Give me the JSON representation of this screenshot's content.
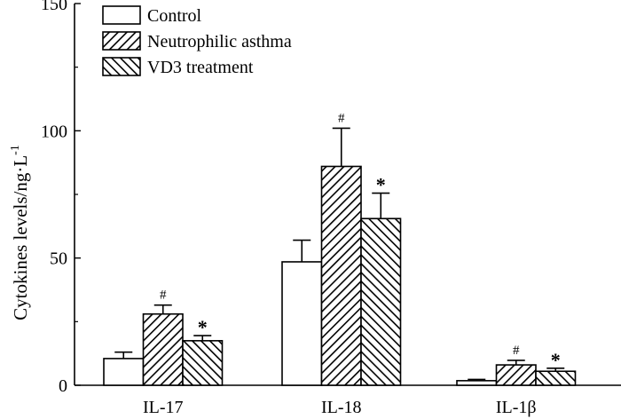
{
  "chart_data": {
    "type": "bar",
    "title": "",
    "xlabel": "",
    "ylabel": "Cytokines levels/ng·L",
    "ylabel_superscript": "-1",
    "ylim": [
      0,
      150
    ],
    "yticks": [
      0,
      50,
      100,
      150
    ],
    "categories": [
      "IL-17",
      "IL-18",
      "IL-1β"
    ],
    "series": [
      {
        "name": "Control",
        "pattern": "none",
        "values": [
          10.5,
          48.5,
          1.8
        ],
        "errors": [
          2.5,
          8.5,
          0.5
        ],
        "marks": [
          "",
          "",
          ""
        ]
      },
      {
        "name": "Neutrophilic asthma",
        "pattern": "hatch-forward",
        "values": [
          28,
          86,
          8
        ],
        "errors": [
          3.5,
          15,
          1.8
        ],
        "marks": [
          "#",
          "#",
          "#"
        ]
      },
      {
        "name": "VD3 treatment",
        "pattern": "hatch-backward",
        "values": [
          17.5,
          65.5,
          5.5
        ],
        "errors": [
          2.0,
          10,
          1.2
        ],
        "marks": [
          "*",
          "*",
          "*"
        ]
      }
    ],
    "legend": {
      "placement": "top-left"
    }
  }
}
